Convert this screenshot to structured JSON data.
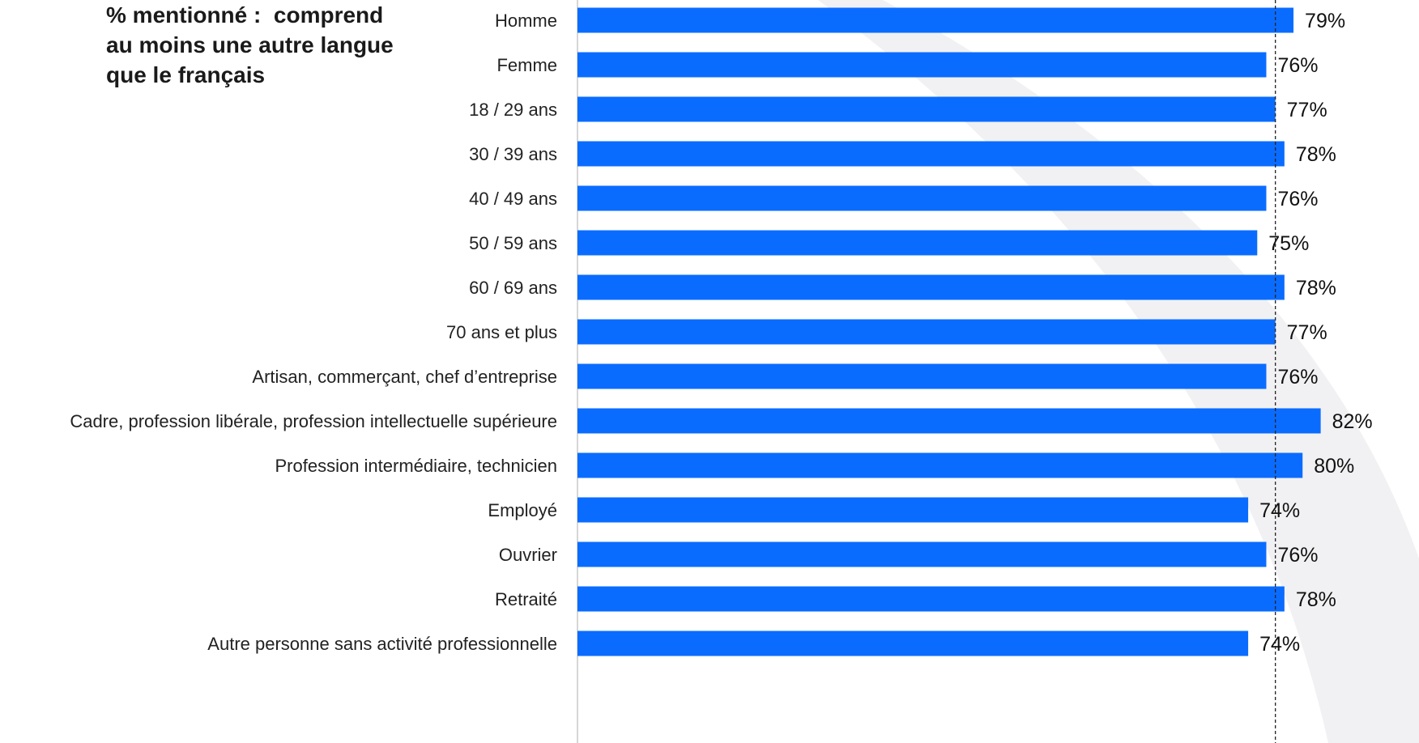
{
  "title_lines": [
    "% mentionné :  comprend",
    "au moins une autre langue",
    "que le français"
  ],
  "chart_data": {
    "type": "bar",
    "orientation": "horizontal",
    "groups": [
      [
        "Homme",
        "Femme"
      ],
      [
        "18 / 29 ans",
        "30 / 39 ans",
        "40 / 49 ans",
        "50 / 59 ans",
        "60 / 69 ans",
        "70 ans et plus"
      ],
      [
        "Artisan, commerçant, chef d’entreprise",
        "Cadre, profession libérale, profession intellectuelle supérieure",
        "Profession intermédiaire, technicien",
        "Employé",
        "Ouvrier",
        "Retraité",
        "Autre personne sans activité professionnelle"
      ]
    ],
    "categories": [
      "Homme",
      "Femme",
      "18 / 29 ans",
      "30 / 39 ans",
      "40 / 49 ans",
      "50 / 59 ans",
      "60 / 69 ans",
      "70 ans et plus",
      "Artisan, commerçant, chef d’entreprise",
      "Cadre, profession libérale, profession intellectuelle supérieure",
      "Profession intermédiaire, technicien",
      "Employé",
      "Ouvrier",
      "Retraité",
      "Autre personne sans activité professionnelle"
    ],
    "values": [
      79,
      76,
      77,
      78,
      76,
      75,
      78,
      77,
      76,
      82,
      80,
      74,
      76,
      78,
      74
    ],
    "value_labels": [
      "79%",
      "76%",
      "77%",
      "78%",
      "76%",
      "75%",
      "78%",
      "77%",
      "76%",
      "82%",
      "80%",
      "74%",
      "76%",
      "78%",
      "74%"
    ],
    "reference_line": {
      "value": 77,
      "style": "dashed"
    },
    "xlim": [
      0,
      84
    ],
    "bar_color": "#0a6cff",
    "grid": false,
    "legend": "none"
  },
  "colors": {
    "bar": "#0a6cff",
    "axis": "#c8c8c8",
    "reference": "#222222",
    "background_arc": "#f1f1f3"
  }
}
